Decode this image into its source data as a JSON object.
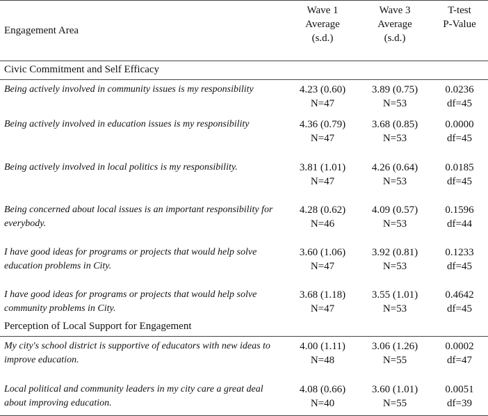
{
  "table": {
    "header": [
      [
        "Engagement Area"
      ],
      [
        "Wave 1",
        "Average",
        "(s.d.)"
      ],
      [
        "Wave 3",
        "Average",
        "(s.d.)"
      ],
      [
        "T-test",
        "P-Value"
      ]
    ],
    "sections": [
      {
        "title": "Civic Commitment and Self Efficacy",
        "rows": [
          {
            "item": "Being actively involved in community issues is my responsibility",
            "wave1": [
              "4.23 (0.60)",
              "N=47"
            ],
            "wave3": [
              "3.89 (0.75)",
              "N=53"
            ],
            "ttest": [
              "0.0236",
              "df=45"
            ]
          },
          {
            "item": "Being actively involved in education issues is my responsibility",
            "wave1": [
              "4.36 (0.79)",
              "N=47"
            ],
            "wave3": [
              "3.68 (0.85)",
              "N=53"
            ],
            "ttest": [
              "0.0000",
              "df=45"
            ]
          },
          {
            "item": "Being actively involved in local politics is my responsibility.",
            "wave1": [
              "3.81 (1.01)",
              "N=47"
            ],
            "wave3": [
              "4.26 (0.64)",
              "N=53"
            ],
            "ttest": [
              "0.0185",
              "df=45"
            ]
          },
          {
            "item": "Being concerned about local issues is an important responsibility for everybody.",
            "wave1": [
              "4.28 (0.62)",
              "N=46"
            ],
            "wave3": [
              "4.09 (0.57)",
              "N=53"
            ],
            "ttest": [
              "0.1596",
              "df=44"
            ]
          },
          {
            "item": "I have good ideas for programs or projects that would help solve education problems in City.",
            "wave1": [
              "3.60 (1.06)",
              "N=47"
            ],
            "wave3": [
              "3.92 (0.81)",
              "N=53"
            ],
            "ttest": [
              "0.1233",
              "df=45"
            ]
          },
          {
            "item": "I have good ideas for programs or projects that would help solve community problems in City.",
            "wave1": [
              "3.68 (1.18)",
              "N=47"
            ],
            "wave3": [
              "3.55 (1.01)",
              "N=53"
            ],
            "ttest": [
              "0.4642",
              "df=45"
            ]
          }
        ]
      },
      {
        "title": "Perception of Local Support for Engagement",
        "rows": [
          {
            "item": "My city's school district is supportive of educators with new ideas to improve education.",
            "wave1": [
              "4.00 (1.11)",
              "N=48"
            ],
            "wave3": [
              "3.06 (1.26)",
              "N=55"
            ],
            "ttest": [
              "0.0002",
              "df=47"
            ]
          },
          {
            "item": "Local political and community leaders in my city care a great deal about improving education.",
            "wave1": [
              "4.08 (0.66)",
              "N=40"
            ],
            "wave3": [
              "3.60 (1.01)",
              "N=55"
            ],
            "ttest": [
              "0.0051",
              "df=39"
            ]
          }
        ]
      }
    ]
  }
}
